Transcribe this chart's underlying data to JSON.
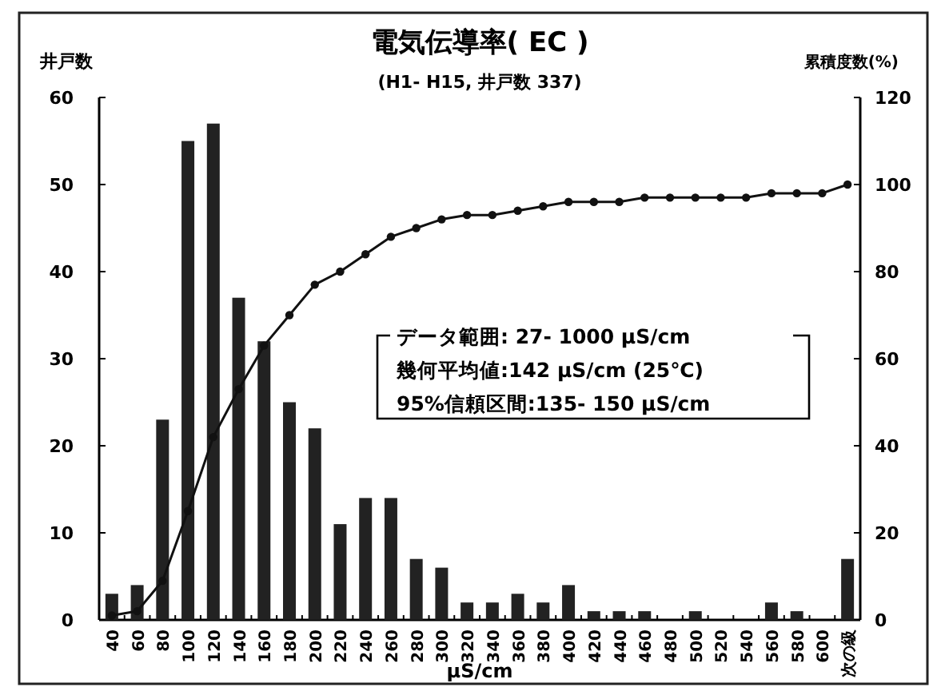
{
  "chart_data": {
    "type": "bar",
    "title": "電気伝導率( EC )",
    "subtitle": "(H1- H15, 井戸数 337)",
    "xlabel": "μS/cm",
    "ylabel": "井戸数",
    "y2label": "累積度数(%)",
    "annotations": [
      "データ範囲: 27- 1000 μS/cm",
      "幾何平均値:142 μS/cm (25℃)",
      "95%信頼区間:135- 150 μS/cm"
    ],
    "categories": [
      "40",
      "60",
      "80",
      "100",
      "120",
      "140",
      "160",
      "180",
      "200",
      "220",
      "240",
      "260",
      "280",
      "300",
      "320",
      "340",
      "360",
      "380",
      "400",
      "420",
      "440",
      "460",
      "480",
      "500",
      "520",
      "540",
      "560",
      "580",
      "600",
      "次の級"
    ],
    "series": [
      {
        "color": "#222222",
        "values": [
          3,
          4,
          23,
          55,
          57,
          37,
          32,
          25,
          22,
          11,
          14,
          14,
          7,
          6,
          2,
          2,
          3,
          2,
          4,
          1,
          1,
          1,
          0,
          1,
          0,
          0,
          2,
          1,
          0,
          7
        ]
      },
      {
        "type": "line",
        "axis": "y2",
        "color": "#111111",
        "marker": "circle",
        "values": [
          1,
          2,
          9,
          25,
          42,
          53,
          63,
          70,
          77,
          80,
          84,
          88,
          90,
          92,
          93,
          93,
          94,
          95,
          96,
          96,
          96,
          97,
          97,
          97,
          97,
          97,
          98,
          98,
          98,
          100
        ]
      }
    ],
    "ylim": [
      0,
      60
    ],
    "yticks": [
      0,
      10,
      20,
      30,
      40,
      50,
      60
    ],
    "y2lim": [
      0,
      120
    ],
    "y2ticks": [
      0,
      20,
      40,
      60,
      80,
      100,
      120
    ],
    "grid": false
  }
}
